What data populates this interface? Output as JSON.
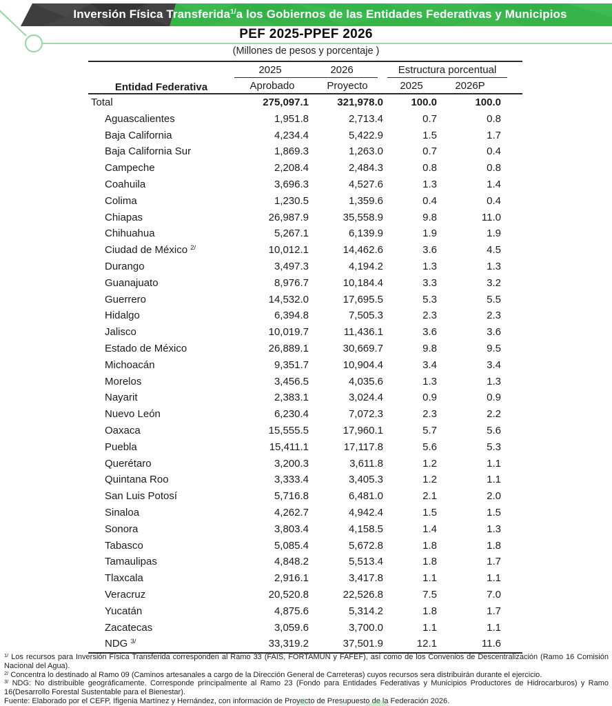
{
  "banner": {
    "title_pre": "Inversión Física Transferida",
    "title_sup": "1/",
    "title_post": "a los Gobiernos de las Entidades Federativas y Municipios"
  },
  "subtitle": "PEF 2025-PPEF 2026",
  "units_note": "(Millones de pesos y porcentaje )",
  "colors": {
    "banner_green": "#35b44a",
    "banner_dark": "#3e3e3e",
    "line_green": "#9fd6a5",
    "rule_dark": "#2a2a2a"
  },
  "table": {
    "entity_header": "Entidad Federativa",
    "group_2025": "2025",
    "group_2026": "2026",
    "group_estructura": "Estructura porcentual",
    "sub_aprobado": "Aprobado",
    "sub_proyecto": "Proyecto",
    "sub_2025": "2025",
    "sub_2026p": "2026P",
    "total_row": {
      "name": "Total",
      "v2025": "275,097.1",
      "v2026": "321,978.0",
      "p2025": "100.0",
      "p2026": "100.0"
    },
    "rows": [
      {
        "name": "Aguascalientes",
        "v2025": "1,951.8",
        "v2026": "2,713.4",
        "p2025": "0.7",
        "p2026": "0.8"
      },
      {
        "name": "Baja California",
        "v2025": "4,234.4",
        "v2026": "5,422.9",
        "p2025": "1.5",
        "p2026": "1.7"
      },
      {
        "name": "Baja California Sur",
        "v2025": "1,869.3",
        "v2026": "1,263.0",
        "p2025": "0.7",
        "p2026": "0.4"
      },
      {
        "name": "Campeche",
        "v2025": "2,208.4",
        "v2026": "2,484.3",
        "p2025": "0.8",
        "p2026": "0.8"
      },
      {
        "name": "Coahuila",
        "v2025": "3,696.3",
        "v2026": "4,527.6",
        "p2025": "1.3",
        "p2026": "1.4"
      },
      {
        "name": "Colima",
        "v2025": "1,230.5",
        "v2026": "1,359.6",
        "p2025": "0.4",
        "p2026": "0.4"
      },
      {
        "name": "Chiapas",
        "v2025": "26,987.9",
        "v2026": "35,558.9",
        "p2025": "9.8",
        "p2026": "11.0"
      },
      {
        "name": "Chihuahua",
        "v2025": "5,267.1",
        "v2026": "6,139.9",
        "p2025": "1.9",
        "p2026": "1.9"
      },
      {
        "name": "Ciudad de México",
        "sup": "2/",
        "v2025": "10,012.1",
        "v2026": "14,462.6",
        "p2025": "3.6",
        "p2026": "4.5"
      },
      {
        "name": "Durango",
        "v2025": "3,497.3",
        "v2026": "4,194.2",
        "p2025": "1.3",
        "p2026": "1.3"
      },
      {
        "name": "Guanajuato",
        "v2025": "8,976.7",
        "v2026": "10,184.4",
        "p2025": "3.3",
        "p2026": "3.2"
      },
      {
        "name": "Guerrero",
        "v2025": "14,532.0",
        "v2026": "17,695.5",
        "p2025": "5.3",
        "p2026": "5.5"
      },
      {
        "name": "Hidalgo",
        "v2025": "6,394.8",
        "v2026": "7,505.3",
        "p2025": "2.3",
        "p2026": "2.3"
      },
      {
        "name": "Jalisco",
        "v2025": "10,019.7",
        "v2026": "11,436.1",
        "p2025": "3.6",
        "p2026": "3.6"
      },
      {
        "name": "Estado de México",
        "v2025": "26,889.1",
        "v2026": "30,669.7",
        "p2025": "9.8",
        "p2026": "9.5"
      },
      {
        "name": "Michoacán",
        "v2025": "9,351.7",
        "v2026": "10,904.4",
        "p2025": "3.4",
        "p2026": "3.4"
      },
      {
        "name": "Morelos",
        "v2025": "3,456.5",
        "v2026": "4,035.6",
        "p2025": "1.3",
        "p2026": "1.3"
      },
      {
        "name": "Nayarit",
        "v2025": "2,383.1",
        "v2026": "3,024.4",
        "p2025": "0.9",
        "p2026": "0.9"
      },
      {
        "name": "Nuevo León",
        "v2025": "6,230.4",
        "v2026": "7,072.3",
        "p2025": "2.3",
        "p2026": "2.2"
      },
      {
        "name": "Oaxaca",
        "v2025": "15,555.5",
        "v2026": "17,960.1",
        "p2025": "5.7",
        "p2026": "5.6"
      },
      {
        "name": "Puebla",
        "v2025": "15,411.1",
        "v2026": "17,117.8",
        "p2025": "5.6",
        "p2026": "5.3"
      },
      {
        "name": "Querétaro",
        "v2025": "3,200.3",
        "v2026": "3,611.8",
        "p2025": "1.2",
        "p2026": "1.1"
      },
      {
        "name": "Quintana Roo",
        "v2025": "3,333.4",
        "v2026": "3,405.3",
        "p2025": "1.2",
        "p2026": "1.1"
      },
      {
        "name": "San Luis Potosí",
        "v2025": "5,716.8",
        "v2026": "6,481.0",
        "p2025": "2.1",
        "p2026": "2.0"
      },
      {
        "name": "Sinaloa",
        "v2025": "4,262.7",
        "v2026": "4,942.4",
        "p2025": "1.5",
        "p2026": "1.5"
      },
      {
        "name": "Sonora",
        "v2025": "3,803.4",
        "v2026": "4,158.5",
        "p2025": "1.4",
        "p2026": "1.3"
      },
      {
        "name": "Tabasco",
        "v2025": "5,085.4",
        "v2026": "5,672.8",
        "p2025": "1.8",
        "p2026": "1.8"
      },
      {
        "name": "Tamaulipas",
        "v2025": "4,848.2",
        "v2026": "5,513.4",
        "p2025": "1.8",
        "p2026": "1.7"
      },
      {
        "name": "Tlaxcala",
        "v2025": "2,916.1",
        "v2026": "3,417.8",
        "p2025": "1.1",
        "p2026": "1.1"
      },
      {
        "name": "Veracruz",
        "v2025": "20,520.8",
        "v2026": "22,526.8",
        "p2025": "7.5",
        "p2026": "7.0"
      },
      {
        "name": "Yucatán",
        "v2025": "4,875.6",
        "v2026": "5,314.2",
        "p2025": "1.8",
        "p2026": "1.7"
      },
      {
        "name": "Zacatecas",
        "v2025": "3,059.6",
        "v2026": "3,700.0",
        "p2025": "1.1",
        "p2026": "1.1"
      },
      {
        "name": "NDG",
        "sup": "3/",
        "v2025": "33,319.2",
        "v2026": "37,501.9",
        "p2025": "12.1",
        "p2026": "11.6"
      }
    ]
  },
  "footnotes": [
    {
      "sup": "1/",
      "text": "Los recursos para Inversión Física Transferida corresponden al Ramo 33 (FAIS, FORTAMUN y FAFEF), así como de los Convenios de Descentralización (Ramo 16 Comisión Nacional del Agua)."
    },
    {
      "sup": "2/",
      "text": "Concentra lo destinado al Ramo 09 (Caminos artesanales a cargo de la Dirección General de Carreteras) cuyos recursos sera distribuirán durante el ejercicio."
    },
    {
      "sup": "3/",
      "text": "NDG: No distribuible geográficamente. Corresponde principalmente al Ramo 23 (Fondo para Entidades Federativas y Municipios Productores de Hidrocarburos) y Ramo 16(Desarrollo Forestal Sustentable para el Bienestar)."
    }
  ],
  "fuente": "Fuente: Elaborado por el CEFP, Ifigenia Martínez y Hernández, con información de Proyecto de Presupuesto de la Federación 2026."
}
